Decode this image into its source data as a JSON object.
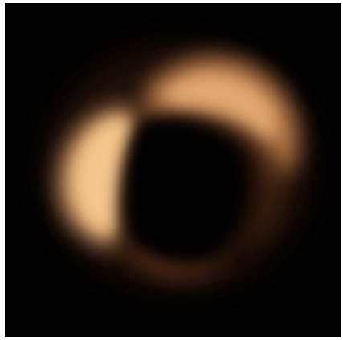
{
  "image": {
    "subject": "glowing-ring",
    "colors": {
      "background": "#000000",
      "frame": "#ffffff",
      "glow_bright": "#f4c98f",
      "glow_mid": "#d9935a",
      "glow_dim": "#7a4322"
    }
  }
}
